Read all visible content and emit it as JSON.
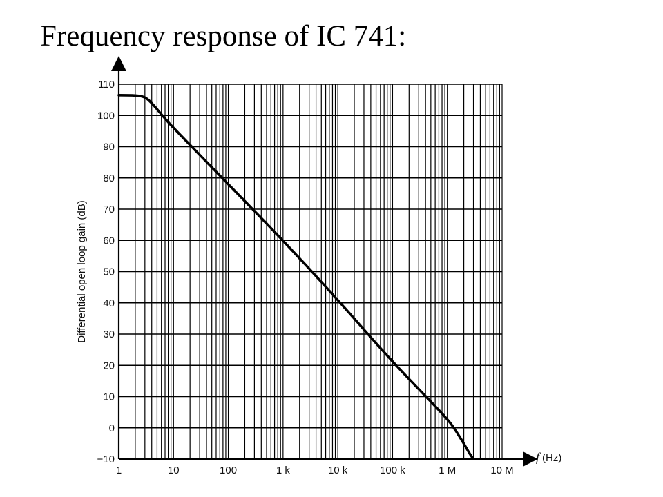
{
  "slide": {
    "title": "Frequency response of IC 741:"
  },
  "chart_data": {
    "type": "line",
    "xscale": "log",
    "xlim": [
      1,
      10000000
    ],
    "ylim": [
      -10,
      110
    ],
    "xlabel_var": "f",
    "xlabel_unit": "(Hz)",
    "ylabel": "Differential open loop gain (dB)",
    "grid": true,
    "x_ticks": [
      {
        "value": 1,
        "label": "1"
      },
      {
        "value": 10,
        "label": "10"
      },
      {
        "value": 100,
        "label": "100"
      },
      {
        "value": 1000,
        "label": "1 k"
      },
      {
        "value": 10000,
        "label": "10 k"
      },
      {
        "value": 100000,
        "label": "100 k"
      },
      {
        "value": 1000000,
        "label": "1 M"
      },
      {
        "value": 10000000,
        "label": "10 M"
      }
    ],
    "y_ticks": [
      {
        "value": 110,
        "label": "110"
      },
      {
        "value": 100,
        "label": "100"
      },
      {
        "value": 90,
        "label": "90"
      },
      {
        "value": 80,
        "label": "80"
      },
      {
        "value": 70,
        "label": "70"
      },
      {
        "value": 60,
        "label": "60"
      },
      {
        "value": 50,
        "label": "50"
      },
      {
        "value": 40,
        "label": "40"
      },
      {
        "value": 30,
        "label": "30"
      },
      {
        "value": 20,
        "label": "20"
      },
      {
        "value": 10,
        "label": "10"
      },
      {
        "value": 0,
        "label": "0"
      },
      {
        "value": -10,
        "label": "−10"
      }
    ],
    "series": [
      {
        "x": [
          1,
          2,
          3,
          4,
          5,
          7,
          10,
          100,
          1000,
          10000,
          100000,
          1000000,
          1500000,
          2000000,
          2500000,
          3000000
        ],
        "y": [
          106.5,
          106.5,
          106,
          104,
          102,
          99,
          96,
          78,
          60,
          41,
          21,
          3,
          -1.5,
          -5,
          -8,
          -10
        ]
      }
    ]
  }
}
